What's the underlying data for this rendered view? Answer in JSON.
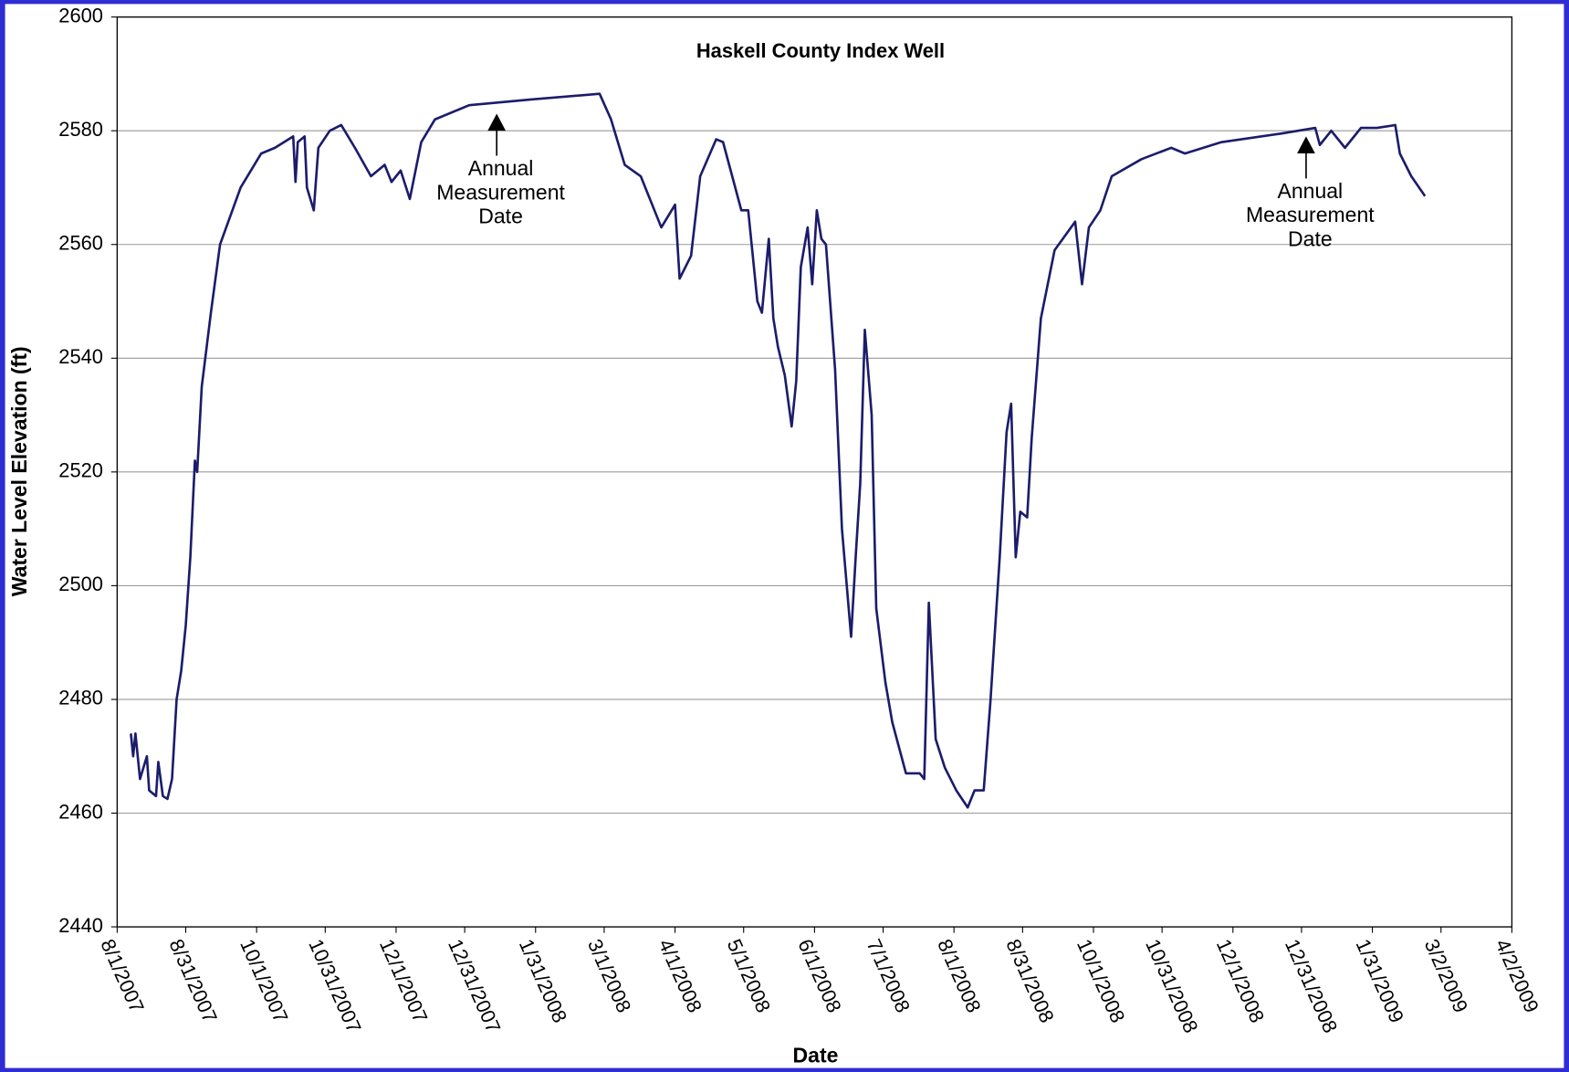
{
  "chart_data": {
    "type": "line",
    "title": "Haskell County Index Well",
    "x_label": "Date",
    "y_label": "Water Level Elevation (ft)",
    "x": [
      "8/7/2007",
      "8/8/2007",
      "8/9/2007",
      "8/11/2007",
      "8/14/2007",
      "8/15/2007",
      "8/18/2007",
      "8/19/2007",
      "8/21/2007",
      "8/23/2007",
      "8/25/2007",
      "8/27/2007",
      "8/29/2007",
      "8/31/2007",
      "9/2/2007",
      "9/4/2007",
      "9/5/2007",
      "9/7/2007",
      "9/11/2007",
      "9/15/2007",
      "9/24/2007",
      "10/3/2007",
      "10/9/2007",
      "10/17/2007",
      "10/18/2007",
      "10/19/2007",
      "10/22/2007",
      "10/23/2007",
      "10/26/2007",
      "10/28/2007",
      "11/2/2007",
      "11/7/2007",
      "11/13/2007",
      "11/20/2007",
      "11/26/2007",
      "11/29/2007",
      "12/3/2007",
      "12/7/2007",
      "12/12/2007",
      "12/18/2007",
      "1/2/2008",
      "1/29/2008",
      "2/28/2008",
      "3/4/2008",
      "3/10/2008",
      "3/17/2008",
      "3/26/2008",
      "4/1/2008",
      "4/3/2008",
      "4/8/2008",
      "4/12/2008",
      "4/19/2008",
      "4/22/2008",
      "4/30/2008",
      "5/3/2008",
      "5/7/2008",
      "5/9/2008",
      "5/12/2008",
      "5/14/2008",
      "5/16/2008",
      "5/19/2008",
      "5/22/2008",
      "5/24/2008",
      "5/26/2008",
      "5/29/2008",
      "5/31/2008",
      "6/2/2008",
      "6/4/2008",
      "6/6/2008",
      "6/10/2008",
      "6/13/2008",
      "6/17/2008",
      "6/19/2008",
      "6/21/2008",
      "6/23/2008",
      "6/26/2008",
      "6/28/2008",
      "7/2/2008",
      "7/5/2008",
      "7/11/2008",
      "7/17/2008",
      "7/19/2008",
      "7/21/2008",
      "7/24/2008",
      "7/28/2008",
      "8/2/2008",
      "8/7/2008",
      "8/10/2008",
      "8/14/2008",
      "8/17/2008",
      "8/21/2008",
      "8/24/2008",
      "8/26/2008",
      "8/28/2008",
      "8/30/2008",
      "9/2/2008",
      "9/4/2008",
      "9/8/2008",
      "9/14/2008",
      "9/23/2008",
      "9/26/2008",
      "9/29/2008",
      "10/4/2008",
      "10/9/2008",
      "10/22/2008",
      "11/4/2008",
      "11/10/2008",
      "11/26/2008",
      "12/22/2008",
      "1/6/2009",
      "1/8/2009",
      "1/13/2009",
      "1/19/2009",
      "1/26/2009",
      "2/2/2009",
      "2/10/2009",
      "2/12/2009",
      "2/17/2009",
      "2/23/2009"
    ],
    "series": [
      {
        "color": "#1c1c6b",
        "values": [
          2474,
          2470,
          2474,
          2466,
          2470,
          2464,
          2463,
          2469,
          2463,
          2462.5,
          2466,
          2480,
          2485,
          2493,
          2505,
          2522,
          2520,
          2535,
          2548,
          2560,
          2570,
          2576,
          2577,
          2579,
          2571,
          2578,
          2579,
          2570,
          2566,
          2577,
          2580,
          2581,
          2577,
          2572,
          2574,
          2571,
          2573,
          2568,
          2578,
          2582,
          2584.5,
          2585.5,
          2586.5,
          2582,
          2574,
          2572,
          2563,
          2567,
          2554,
          2558,
          2572,
          2578.5,
          2578,
          2566,
          2566,
          2550,
          2548,
          2561,
          2547,
          2542,
          2537,
          2528,
          2536,
          2556,
          2563,
          2553,
          2566,
          2561,
          2560,
          2538,
          2510,
          2491,
          2505,
          2518,
          2545,
          2530,
          2496,
          2483,
          2476,
          2467,
          2467,
          2466,
          2497,
          2473,
          2468,
          2464,
          2461,
          2464,
          2464,
          2480,
          2505,
          2527,
          2532,
          2505,
          2513,
          2512,
          2526,
          2547,
          2559,
          2564,
          2553,
          2563,
          2566,
          2572,
          2575,
          2577,
          2576,
          2578,
          2579.5,
          2580.5,
          2577.5,
          2580,
          2577,
          2580.5,
          2580.5,
          2581,
          2576,
          2572,
          2568.5
        ]
      }
    ],
    "xlim": [
      "8/1/2007",
      "4/2/2009"
    ],
    "xticks": [
      "8/1/2007",
      "8/31/2007",
      "10/1/2007",
      "10/31/2007",
      "12/1/2007",
      "12/31/2007",
      "1/31/2008",
      "3/1/2008",
      "4/1/2008",
      "5/1/2008",
      "6/1/2008",
      "7/1/2008",
      "8/1/2008",
      "8/31/2008",
      "10/1/2008",
      "10/31/2008",
      "12/1/2008",
      "12/31/2008",
      "1/31/2009",
      "3/2/2009",
      "4/2/2009"
    ],
    "ylim": [
      2440,
      2600
    ],
    "yticks": [
      2440,
      2460,
      2480,
      2500,
      2520,
      2540,
      2560,
      2580,
      2600
    ],
    "grid": true,
    "annotations": [
      {
        "text": [
          "Annual",
          "Measurement",
          "Date"
        ],
        "x": "1/14/2008",
        "y": 2583
      },
      {
        "text": [
          "Annual",
          "Measurement",
          "Date"
        ],
        "x": "1/2/2009",
        "y": 2579
      }
    ]
  }
}
